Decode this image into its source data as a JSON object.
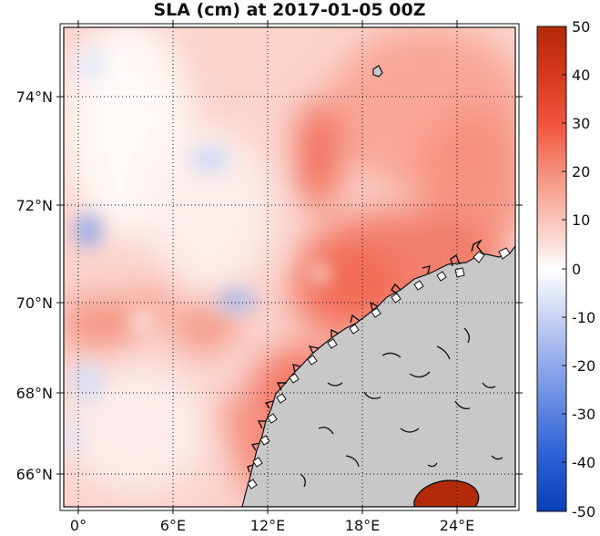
{
  "title": "SLA (cm) at 2017-01-05 00Z",
  "map": {
    "lon_range": [
      -1.5,
      28
    ],
    "lat_range": [
      65.2,
      75.4
    ],
    "lon_ticks": [
      "0°",
      "6°E",
      "12°E",
      "18°E",
      "24°E"
    ],
    "lat_ticks": [
      "66°N",
      "68°N",
      "70°N",
      "72°N",
      "74°N"
    ],
    "grid": true,
    "land_color": "#c8c8c8"
  },
  "colorbar": {
    "min": -50,
    "max": 50,
    "ticks": [
      "50",
      "40",
      "30",
      "20",
      "10",
      "0",
      "-10",
      "-20",
      "-30",
      "-40",
      "-50"
    ],
    "colors": {
      "low": "#0a3fb8",
      "mid": "#ffffff",
      "high": "#b22a07"
    }
  }
}
